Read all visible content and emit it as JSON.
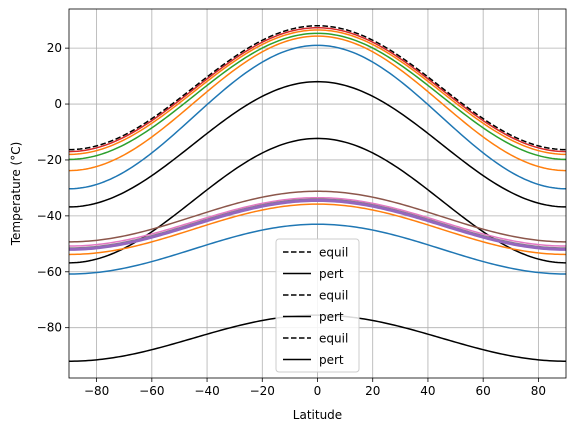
{
  "chart_data": {
    "type": "line",
    "title": "",
    "xlabel": "Latitude",
    "ylabel": "Temperature (°C)",
    "xlim": [
      -90,
      90
    ],
    "ylim": [
      -98,
      34
    ],
    "xticks": [
      -80,
      -60,
      -40,
      -20,
      0,
      20,
      40,
      60,
      80
    ],
    "xtick_labels": [
      "−80",
      "−60",
      "−40",
      "−20",
      "0",
      "20",
      "40",
      "60",
      "80"
    ],
    "yticks": [
      -80,
      -60,
      -40,
      -20,
      0,
      20
    ],
    "ytick_labels": [
      "−80",
      "−60",
      "−40",
      "−20",
      "0",
      "20"
    ],
    "grid": true,
    "legend_position": "bottom-center",
    "legend": [
      {
        "label": "equil",
        "style": "dashed",
        "color": "#000000"
      },
      {
        "label": "pert",
        "style": "solid",
        "color": "#000000"
      },
      {
        "label": "equil",
        "style": "dashed",
        "color": "#000000"
      },
      {
        "label": "pert",
        "style": "solid",
        "color": "#000000"
      },
      {
        "label": "equil",
        "style": "dashed",
        "color": "#000000"
      },
      {
        "label": "pert",
        "style": "solid",
        "color": "#000000"
      }
    ],
    "series": [
      {
        "color": "#d62728",
        "equator": 27.3,
        "pole": -17.0,
        "style": "solid",
        "width": 1.5
      },
      {
        "color": "#ff7f0e",
        "equator": 26.5,
        "pole": -18.0,
        "style": "solid",
        "width": 1.5
      },
      {
        "color": "#2ca02c",
        "equator": 25.3,
        "pole": -19.8,
        "style": "solid",
        "width": 1.5
      },
      {
        "color": "#ff7f0e",
        "equator": 24.3,
        "pole": -23.8,
        "style": "solid",
        "width": 1.5
      },
      {
        "color": "#1f77b4",
        "equator": 21.0,
        "pole": -30.3,
        "style": "solid",
        "width": 1.5
      },
      {
        "color": "#000000",
        "equator": 8.0,
        "pole": -36.8,
        "style": "solid",
        "width": 1.5
      },
      {
        "color": "#000000",
        "equator": -12.3,
        "pole": -56.8,
        "style": "solid",
        "width": 1.5
      },
      {
        "color": "#8c564b",
        "equator": -31.2,
        "pole": -49.3,
        "style": "solid",
        "width": 1.5
      },
      {
        "color": "#e377c2",
        "equator": -33.5,
        "pole": -50.8,
        "style": "solid",
        "width": 1.5
      },
      {
        "color": "#7f7f7f",
        "equator": -34.0,
        "pole": -51.5,
        "style": "solid",
        "width": 1.5
      },
      {
        "color": "#9467bd",
        "equator": -34.5,
        "pole": -52.0,
        "style": "solid",
        "width": 3.0
      },
      {
        "color": "#ff7f0e",
        "equator": -35.8,
        "pole": -53.8,
        "style": "solid",
        "width": 1.5
      },
      {
        "color": "#1f77b4",
        "equator": -43.0,
        "pole": -60.8,
        "style": "solid",
        "width": 1.5
      },
      {
        "color": "#000000",
        "equator": -75.5,
        "pole": -92.0,
        "style": "solid",
        "width": 1.5
      },
      {
        "color": "#000000",
        "equator": 28.0,
        "pole": -16.3,
        "style": "dashed",
        "width": 1.5
      }
    ]
  }
}
